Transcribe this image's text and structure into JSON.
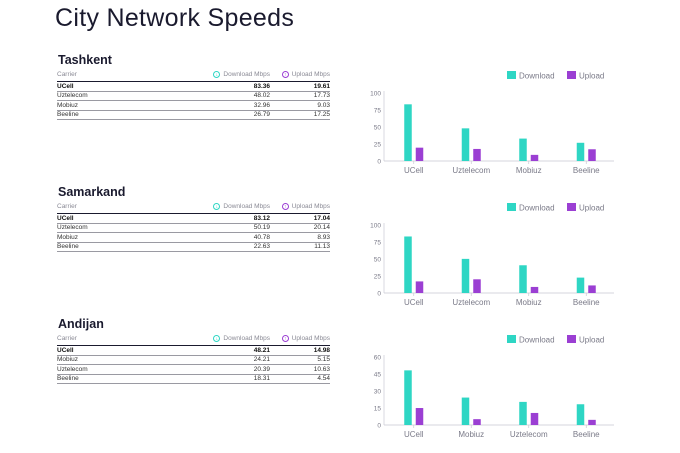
{
  "title": "City Network Speeds",
  "legend": {
    "download": "Download",
    "upload": "Upload"
  },
  "colors": {
    "download": "#2ed6c4",
    "upload": "#9b3fd3",
    "axis": "#c9c9d3",
    "text": "#7a7a88"
  },
  "table_headers": {
    "carrier": "Carrier",
    "download": "Download Mbps",
    "upload": "Upload Mbps"
  },
  "cities": [
    {
      "name": "Tashkent",
      "rows": [
        {
          "carrier": "UCell",
          "download": "83.36",
          "upload": "19.61"
        },
        {
          "carrier": "Uztelecom",
          "download": "48.02",
          "upload": "17.73"
        },
        {
          "carrier": "Mobiuz",
          "download": "32.96",
          "upload": "9.03"
        },
        {
          "carrier": "Beeline",
          "download": "26.79",
          "upload": "17.25"
        }
      ]
    },
    {
      "name": "Samarkand",
      "rows": [
        {
          "carrier": "UCell",
          "download": "83.12",
          "upload": "17.04"
        },
        {
          "carrier": "Uztelecom",
          "download": "50.19",
          "upload": "20.14"
        },
        {
          "carrier": "Mobiuz",
          "download": "40.78",
          "upload": "8.93"
        },
        {
          "carrier": "Beeline",
          "download": "22.63",
          "upload": "11.13"
        }
      ]
    },
    {
      "name": "Andijan",
      "rows": [
        {
          "carrier": "UCell",
          "download": "48.21",
          "upload": "14.98"
        },
        {
          "carrier": "Mobiuz",
          "download": "24.21",
          "upload": "5.15"
        },
        {
          "carrier": "Uztelecom",
          "download": "20.39",
          "upload": "10.63"
        },
        {
          "carrier": "Beeline",
          "download": "18.31",
          "upload": "4.54"
        }
      ]
    }
  ],
  "chart_data": [
    {
      "type": "bar",
      "title": "Tashkent",
      "categories": [
        "UCell",
        "Uztelecom",
        "Mobiuz",
        "Beeline"
      ],
      "series": [
        {
          "name": "Download",
          "values": [
            83.36,
            48.02,
            32.96,
            26.79
          ]
        },
        {
          "name": "Upload",
          "values": [
            19.61,
            17.73,
            9.03,
            17.25
          ]
        }
      ],
      "ylim": [
        0,
        100
      ],
      "yticks": [
        "0",
        "25",
        "50",
        "75",
        "100"
      ],
      "legend": "top-right"
    },
    {
      "type": "bar",
      "title": "Samarkand",
      "categories": [
        "UCell",
        "Uztelecom",
        "Mobiuz",
        "Beeline"
      ],
      "series": [
        {
          "name": "Download",
          "values": [
            83.12,
            50.19,
            40.78,
            22.63
          ]
        },
        {
          "name": "Upload",
          "values": [
            17.04,
            20.14,
            8.93,
            11.13
          ]
        }
      ],
      "ylim": [
        0,
        100
      ],
      "yticks": [
        "0",
        "25",
        "50",
        "75",
        "100"
      ],
      "legend": "top-right"
    },
    {
      "type": "bar",
      "title": "Andijan",
      "categories": [
        "UCell",
        "Mobiuz",
        "Uztelecom",
        "Beeline"
      ],
      "series": [
        {
          "name": "Download",
          "values": [
            48.21,
            24.21,
            20.39,
            18.31
          ]
        },
        {
          "name": "Upload",
          "values": [
            14.98,
            5.15,
            10.63,
            4.54
          ]
        }
      ],
      "ylim": [
        0,
        60
      ],
      "yticks": [
        "0",
        "15",
        "30",
        "45",
        "60"
      ],
      "legend": "top-right"
    }
  ]
}
